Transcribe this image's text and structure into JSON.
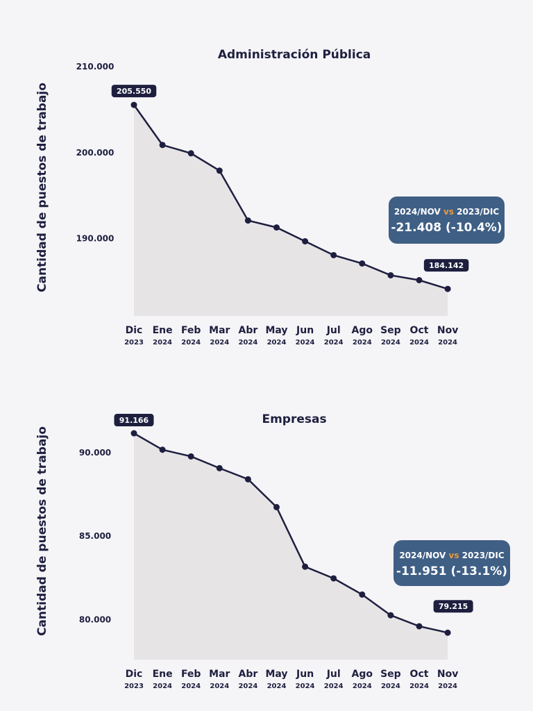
{
  "colors": {
    "line": "#1e1f3f",
    "area": "#e7e4e6",
    "label_bg": "#1e1f3f",
    "callout_bg": "#3f5f85",
    "vs": "#e89a3c"
  },
  "chart_data": [
    {
      "type": "area",
      "title": "Administración Pública",
      "ylabel": "Cantidad de puestos de trabajo",
      "xlabel": "",
      "categories": [
        [
          "Dic",
          "2023"
        ],
        [
          "Ene",
          "2024"
        ],
        [
          "Feb",
          "2024"
        ],
        [
          "Mar",
          "2024"
        ],
        [
          "Abr",
          "2024"
        ],
        [
          "May",
          "2024"
        ],
        [
          "Jun",
          "2024"
        ],
        [
          "Jul",
          "2024"
        ],
        [
          "Ago",
          "2024"
        ],
        [
          "Sep",
          "2024"
        ],
        [
          "Oct",
          "2024"
        ],
        [
          "Nov",
          "2024"
        ]
      ],
      "values": [
        205550,
        200890,
        199920,
        197900,
        192100,
        191290,
        189680,
        188070,
        187100,
        185730,
        185160,
        184142
      ],
      "yticks": [
        190000,
        200000,
        210000
      ],
      "ytick_labels": [
        "190.000",
        "200.000",
        "210.000"
      ],
      "ylim": [
        181000,
        210000
      ],
      "point_labels": {
        "first": "205.550",
        "last": "184.142"
      },
      "comparison": {
        "left": "2024/NOV",
        "vs": "vs",
        "right": "2023/DIC",
        "value": "-21.408 (-10.4%)"
      }
    },
    {
      "type": "area",
      "title": "Empresas",
      "ylabel": "Cantidad de puestos de trabajo",
      "xlabel": "",
      "categories": [
        [
          "Dic",
          "2023"
        ],
        [
          "Ene",
          "2024"
        ],
        [
          "Feb",
          "2024"
        ],
        [
          "Mar",
          "2024"
        ],
        [
          "Abr",
          "2024"
        ],
        [
          "May",
          "2024"
        ],
        [
          "Jun",
          "2024"
        ],
        [
          "Jul",
          "2024"
        ],
        [
          "Ago",
          "2024"
        ],
        [
          "Sep",
          "2024"
        ],
        [
          "Oct",
          "2024"
        ],
        [
          "Nov",
          "2024"
        ]
      ],
      "values": [
        91166,
        90180,
        89780,
        89075,
        88410,
        86740,
        83170,
        82470,
        81500,
        80260,
        79600,
        79215
      ],
      "yticks": [
        80000,
        85000,
        90000
      ],
      "ytick_labels": [
        "80.000",
        "85.000",
        "90.000"
      ],
      "ylim": [
        77600,
        92000
      ],
      "point_labels": {
        "first": "91.166",
        "last": "79.215"
      },
      "comparison": {
        "left": "2024/NOV",
        "vs": "vs",
        "right": "2023/DIC",
        "value": "-11.951 (-13.1%)"
      }
    }
  ]
}
